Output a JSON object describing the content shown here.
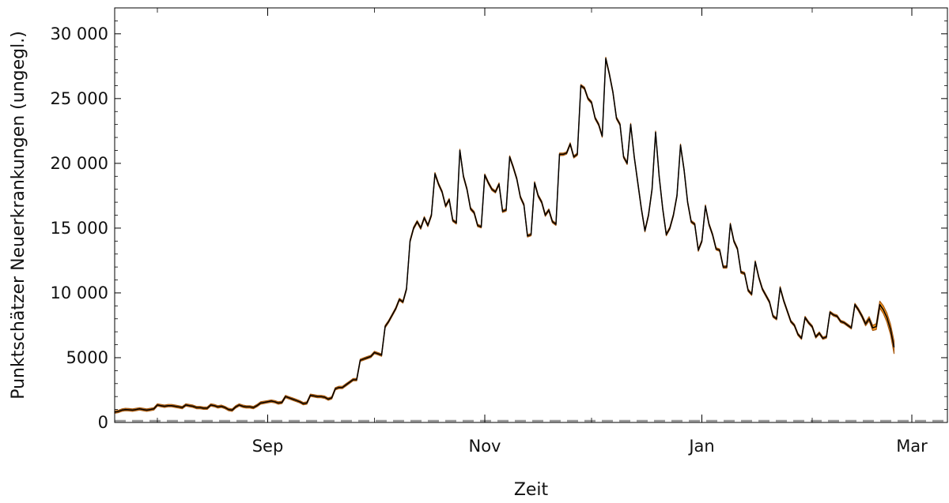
{
  "chart_data": {
    "type": "line",
    "title": "",
    "xlabel": "Zeit",
    "ylabel": "Punktschätzer Neuerkrankungen (ungegl.)",
    "ylim": [
      0,
      32000
    ],
    "yticks": [
      0,
      5000,
      10000,
      15000,
      20000,
      25000,
      30000
    ],
    "ytick_labels": [
      "0",
      "5000",
      "10 000",
      "15 000",
      "20 000",
      "25 000",
      "30 000"
    ],
    "xlim": [
      "2020-07-20",
      "2021-03-11"
    ],
    "xticks": [
      "2020-09-01",
      "2020-11-01",
      "2021-01-01",
      "2021-03-01"
    ],
    "xtick_labels": [
      "Sep",
      "Nov",
      "Jan",
      "Mar"
    ],
    "xminor": [
      "2020-08-01",
      "2020-10-01",
      "2020-12-01",
      "2021-02-01"
    ],
    "grid": false,
    "colors": {
      "line": "#000000",
      "band_fill": "#f5961e",
      "band_stroke": "#a85a10",
      "baseline": "#999999"
    },
    "series": [
      {
        "start": "2020-07-20",
        "step_days": 1,
        "values": [
          800,
          850,
          950,
          1000,
          980,
          950,
          1000,
          1050,
          1000,
          950,
          1000,
          1050,
          1350,
          1300,
          1250,
          1300,
          1300,
          1250,
          1200,
          1150,
          1350,
          1300,
          1250,
          1150,
          1150,
          1100,
          1100,
          1350,
          1300,
          1200,
          1250,
          1150,
          1000,
          950,
          1200,
          1350,
          1250,
          1200,
          1200,
          1150,
          1300,
          1500,
          1550,
          1600,
          1650,
          1600,
          1500,
          1550,
          2000,
          1900,
          1800,
          1700,
          1600,
          1450,
          1500,
          2100,
          2050,
          2000,
          2000,
          1950,
          1800,
          1900,
          2600,
          2700,
          2700,
          2900,
          3100,
          3300,
          3300,
          4800,
          4900,
          5000,
          5100,
          5400,
          5300,
          5200,
          7400,
          7800,
          8300,
          8800,
          9500,
          9300,
          10300,
          14000,
          15000,
          15500,
          15000,
          15800,
          15200,
          16000,
          19200,
          18400,
          17800,
          16700,
          17200,
          15600,
          15400,
          21000,
          19000,
          18000,
          16500,
          16200,
          15200,
          15100,
          19100,
          18500,
          18000,
          17800,
          18400,
          16300,
          16400,
          20500,
          19700,
          18800,
          17400,
          16800,
          14400,
          14500,
          18500,
          17500,
          17000,
          16000,
          16400,
          15500,
          15300,
          20700,
          20700,
          20800,
          21500,
          20500,
          20700,
          26000,
          25800,
          25000,
          24700,
          23500,
          23000,
          22100,
          28100,
          26900,
          25500,
          23500,
          23000,
          20500,
          20000,
          23000,
          20500,
          18500,
          16500,
          14800,
          16000,
          18000,
          22400,
          19000,
          16500,
          14500,
          15000,
          16000,
          17500,
          21400,
          19500,
          17000,
          15500,
          15300,
          13300,
          14000,
          16700,
          15300,
          14500,
          13400,
          13300,
          12000,
          12000,
          15300,
          14000,
          13400,
          11600,
          11500,
          10200,
          9900,
          12400,
          11200,
          10300,
          9800,
          9300,
          8200,
          8000,
          10400,
          9400,
          8600,
          7800,
          7500,
          6800,
          6500,
          8100,
          7700,
          7400,
          6600,
          6900,
          6500,
          6600,
          8500,
          8300,
          8200,
          7800,
          7700,
          7500,
          7300,
          9100,
          8700,
          8200,
          7600,
          8000,
          7300,
          7400,
          9100,
          8700,
          8100,
          7200,
          5800
        ],
        "band_halfwidth": [
          90,
          90,
          90,
          90,
          90,
          90,
          90,
          90,
          90,
          90,
          90,
          90,
          90,
          90,
          90,
          90,
          90,
          90,
          90,
          90,
          90,
          90,
          90,
          90,
          90,
          90,
          90,
          90,
          90,
          90,
          90,
          90,
          90,
          90,
          90,
          90,
          90,
          90,
          90,
          90,
          90,
          90,
          90,
          90,
          90,
          90,
          90,
          90,
          90,
          90,
          90,
          90,
          90,
          90,
          90,
          90,
          90,
          90,
          90,
          90,
          90,
          90,
          90,
          90,
          90,
          90,
          90,
          90,
          90,
          90,
          90,
          90,
          90,
          90,
          90,
          90,
          90,
          90,
          90,
          90,
          90,
          90,
          90,
          90,
          90,
          90,
          90,
          90,
          90,
          90,
          90,
          90,
          90,
          90,
          90,
          90,
          90,
          90,
          90,
          90,
          90,
          90,
          90,
          90,
          90,
          90,
          90,
          90,
          90,
          90,
          90,
          90,
          90,
          90,
          90,
          90,
          90,
          90,
          90,
          90,
          90,
          90,
          90,
          90,
          90,
          90,
          90,
          90,
          90,
          90,
          90,
          90,
          90,
          90,
          90,
          90,
          90,
          90,
          90,
          90,
          90,
          90,
          90,
          90,
          90,
          90,
          90,
          90,
          90,
          90,
          90,
          90,
          90,
          90,
          90,
          90,
          90,
          90,
          90,
          90,
          90,
          90,
          90,
          90,
          90,
          90,
          90,
          90,
          90,
          90,
          90,
          90,
          90,
          90,
          90,
          90,
          90,
          90,
          90,
          90,
          90,
          90,
          90,
          90,
          90,
          90,
          90,
          90,
          90,
          90,
          90,
          90,
          90,
          90,
          90,
          90,
          90,
          90,
          90,
          90,
          90,
          90,
          90,
          90,
          90,
          90,
          90,
          90,
          100,
          110,
          120,
          140,
          170,
          200,
          230,
          260,
          300,
          350,
          400,
          480,
          560,
          650,
          800,
          1100,
          1400,
          1700,
          2000
        ]
      }
    ]
  }
}
